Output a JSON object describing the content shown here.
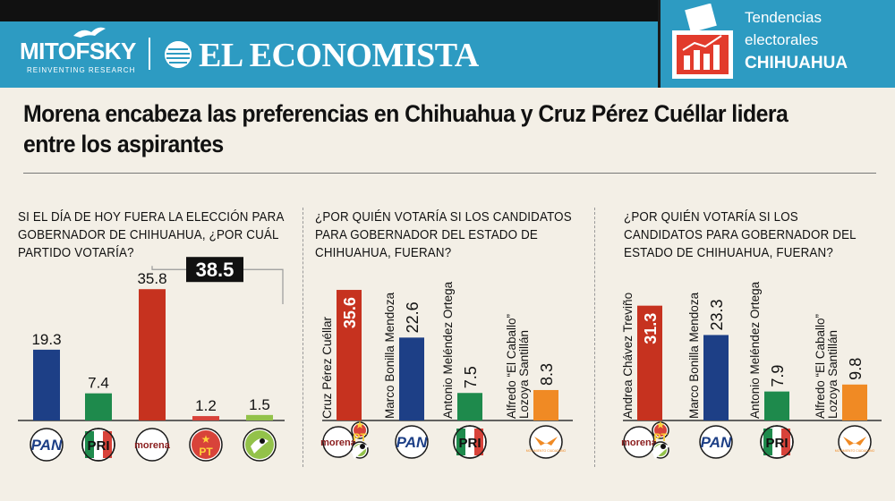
{
  "header": {
    "brand_mitofsky": "MITOFSKY",
    "brand_mitofsky_tagline": "REINVENTING RESEARCH",
    "brand_economista": "EL ECONOMISTA",
    "section_line1": "Tendencias",
    "section_line2": "electorales",
    "section_line3": "CHIHUAHUA"
  },
  "headline": "Morena encabeza las preferencias en Chihuahua y Cruz Pérez Cuéllar lidera entre los aspirantes",
  "colors": {
    "header_blue": "#2d9bc2",
    "morena": "#c6321f",
    "pan": "#1d3f86",
    "pri": "#1e8a4c",
    "pt": "#d8433a",
    "pvem": "#93c24a",
    "mc": "#f08a24"
  },
  "chart_data": [
    {
      "type": "bar",
      "title": "SI EL DÍA DE HOY FUERA LA ELECCIÓN PARA GOBERNADOR DE CHIHUAHUA, ¿POR CUÁL PARTIDO VOTARÍA?",
      "categories": [
        "PAN",
        "PRI",
        "morena",
        "PT",
        "PVEM"
      ],
      "values": [
        19.3,
        7.4,
        35.8,
        1.2,
        1.5
      ],
      "colors": [
        "#1d3f86",
        "#1e8a4c",
        "#c6321f",
        "#d8433a",
        "#93c24a"
      ],
      "annotation": {
        "label": "38.5",
        "spans": [
          "morena",
          "PT",
          "PVEM"
        ]
      },
      "ylim": [
        0,
        40
      ]
    },
    {
      "type": "bar",
      "title": "¿POR QUIÉN VOTARÍA SI LOS CANDIDATOS PARA GOBERNADOR DEL ESTADO DE CHIHUAHUA, FUERAN?",
      "categories": [
        "Cruz Pérez Cuéllar",
        "Marco Bonilla Mendoza",
        "Antonio Meléndez Ortega",
        "Alfredo “El Caballo” Lozoya Santillán"
      ],
      "values": [
        35.6,
        22.6,
        7.5,
        8.3
      ],
      "parties": [
        "morena-pt-pvem",
        "PAN",
        "PRI",
        "MC"
      ],
      "colors": [
        "#c6321f",
        "#1d3f86",
        "#1e8a4c",
        "#f08a24"
      ],
      "ylim": [
        0,
        40
      ]
    },
    {
      "type": "bar",
      "title": "¿POR QUIÉN VOTARÍA SI LOS CANDIDATOS PARA GOBERNADOR DEL ESTADO DE CHIHUAHUA, FUERAN?",
      "categories": [
        "Andrea Chávez Treviño",
        "Marco Bonilla Mendoza",
        "Antonio Meléndez Ortega",
        "Alfredo “El Caballo” Lozoya Santillán"
      ],
      "values": [
        31.3,
        23.3,
        7.9,
        9.8
      ],
      "parties": [
        "morena-pt-pvem",
        "PAN",
        "PRI",
        "MC"
      ],
      "colors": [
        "#c6321f",
        "#1d3f86",
        "#1e8a4c",
        "#f08a24"
      ],
      "ylim": [
        0,
        40
      ]
    }
  ],
  "logo_labels": {
    "pan": "PAN",
    "pri": "PRI",
    "morena": "morena",
    "pt": "PT",
    "mc": "MOVIMIENTO CIUDADANO"
  }
}
